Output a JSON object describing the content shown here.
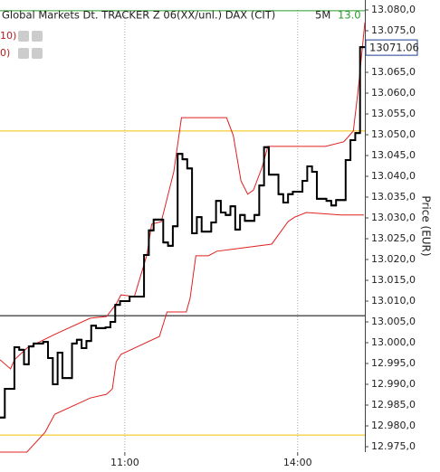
{
  "header": {
    "title": "Global Markets Dt. TRACKER Z 06(XX/unl.) DAX (CIT)",
    "interval": "5M",
    "value": "13.0"
  },
  "indicators": [
    "10)",
    "0)"
  ],
  "chart_data": {
    "type": "line",
    "y_label": "Price (EUR)",
    "xlim": [
      530,
      910
    ],
    "ylim": [
      12975,
      13080
    ],
    "xticks": [
      {
        "value": 660,
        "label": "11:00"
      },
      {
        "value": 840,
        "label": "14:00"
      }
    ],
    "yticks": [
      {
        "value": 12975,
        "label": "12.975,0"
      },
      {
        "value": 12980,
        "label": "12.980,0"
      },
      {
        "value": 12985,
        "label": "12.985,0"
      },
      {
        "value": 12990,
        "label": "12.990,0"
      },
      {
        "value": 12995,
        "label": "12.995,0"
      },
      {
        "value": 13000,
        "label": "13.000,0"
      },
      {
        "value": 13005,
        "label": "13.005,0"
      },
      {
        "value": 13010,
        "label": "13.010,0"
      },
      {
        "value": 13015,
        "label": "13.015,0"
      },
      {
        "value": 13020,
        "label": "13.020,0"
      },
      {
        "value": 13025,
        "label": "13.025,0"
      },
      {
        "value": 13030,
        "label": "13.030,0"
      },
      {
        "value": 13035,
        "label": "13.035,0"
      },
      {
        "value": 13040,
        "label": "13.040,0"
      },
      {
        "value": 13045,
        "label": "13.045,0"
      },
      {
        "value": 13050,
        "label": "13.050,0"
      },
      {
        "value": 13055,
        "label": "13.055,0"
      },
      {
        "value": 13060,
        "label": "13.060,0"
      },
      {
        "value": 13065,
        "label": "13.065,0"
      },
      {
        "value": 13070,
        "label": "13.070,0"
      },
      {
        "value": 13075,
        "label": "13.075,0"
      },
      {
        "value": 13080,
        "label": "13.080,0"
      }
    ],
    "grid": true,
    "hlines": [
      {
        "value": 13079.8,
        "color": "#2a9a2a"
      },
      {
        "value": 13050.9,
        "color": "#f0c000"
      },
      {
        "value": 13006.5,
        "color": "#000000"
      },
      {
        "value": 12977.8,
        "color": "#f0c000"
      }
    ],
    "series": [
      {
        "color": "#e02020",
        "step": false,
        "x": [
          530,
          541,
          545,
          558,
          587,
          624,
          641,
          651,
          656,
          670,
          683,
          688,
          698,
          711,
          719,
          766,
          773,
          781,
          788,
          794,
          803,
          809,
          869,
          888,
          898,
          903,
          910
        ],
        "values": [
          12995.9,
          12993.7,
          12995.9,
          12998.7,
          13002.0,
          13005.9,
          13006.3,
          13009.3,
          13011.5,
          13011.1,
          13021.1,
          13028.5,
          13029.1,
          13041.1,
          13054.1,
          13054.1,
          13049.8,
          13038.9,
          13035.7,
          13036.7,
          13042.2,
          13047.2,
          13047.2,
          13048.3,
          13050.9,
          13060.7,
          13077.0
        ]
      },
      {
        "color": "#e02020",
        "step": false,
        "x": [
          530,
          558,
          577,
          587,
          624,
          641,
          647,
          651,
          656,
          696,
          704,
          724,
          728,
          734,
          747,
          756,
          813,
          830,
          837,
          849,
          885,
          909
        ],
        "values": [
          12973.7,
          12973.7,
          12978.5,
          12982.8,
          12986.7,
          12987.6,
          12988.9,
          12995.4,
          12997.2,
          13001.5,
          13007.4,
          13007.4,
          13010.7,
          13020.9,
          13020.9,
          13022.0,
          13023.7,
          13029.1,
          13030.2,
          13031.3,
          13030.7,
          13030.7
        ]
      },
      {
        "color": "#000000",
        "step": true,
        "x": [
          530,
          535,
          545,
          550,
          555,
          560,
          565,
          575,
          580,
          585,
          590,
          595,
          605,
          610,
          615,
          620,
          625,
          630,
          640,
          645,
          650,
          655,
          665,
          680,
          685,
          690,
          700,
          705,
          710,
          715,
          720,
          725,
          730,
          735,
          740,
          750,
          755,
          760,
          765,
          770,
          775,
          780,
          785,
          795,
          800,
          805,
          810,
          820,
          825,
          830,
          835,
          845,
          850,
          855,
          860,
          870,
          875,
          880,
          890,
          895,
          900,
          905
        ],
        "values": [
          12982.0,
          12988.9,
          12998.9,
          12998.3,
          12994.8,
          12999.1,
          12999.8,
          13000.2,
          12996.3,
          12990.0,
          12997.6,
          12991.5,
          12999.8,
          13000.7,
          12998.7,
          13000.4,
          13004.1,
          13003.5,
          13003.7,
          13005.0,
          13009.1,
          13010.0,
          13011.1,
          13021.1,
          13027.0,
          13029.6,
          13024.1,
          13023.3,
          13028.0,
          13045.4,
          13044.1,
          13041.9,
          13026.3,
          13030.2,
          13026.7,
          13028.9,
          13034.1,
          13031.3,
          13030.7,
          13032.8,
          13027.2,
          13030.7,
          13029.3,
          13030.7,
          13037.8,
          13047.0,
          13040.4,
          13035.7,
          13033.7,
          13035.7,
          13036.3,
          13038.9,
          13042.4,
          13041.1,
          13034.6,
          13034.1,
          13033.0,
          13034.3,
          13043.9,
          13048.7,
          13050.4,
          13071.06
        ]
      }
    ],
    "last_price": 13071.06,
    "last_price_color": "#1c3f94"
  }
}
